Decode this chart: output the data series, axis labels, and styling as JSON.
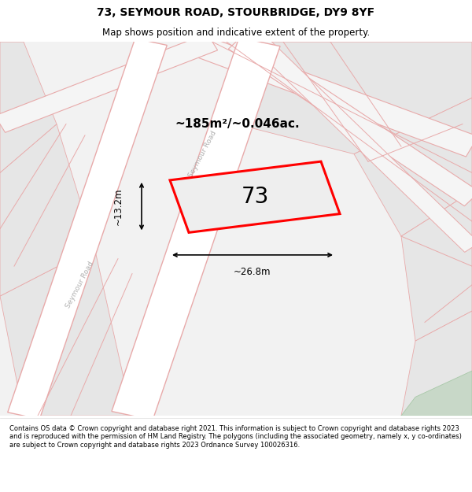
{
  "title": "73, SEYMOUR ROAD, STOURBRIDGE, DY9 8YF",
  "subtitle": "Map shows position and indicative extent of the property.",
  "footer": "Contains OS data © Crown copyright and database right 2021. This information is subject to Crown copyright and database rights 2023 and is reproduced with the permission of HM Land Registry. The polygons (including the associated geometry, namely x, y co-ordinates) are subject to Crown copyright and database rights 2023 Ordnance Survey 100026316.",
  "area_label": "~185m²/~0.046ac.",
  "number_label": "73",
  "width_label": "~26.8m",
  "height_label": "~13.2m",
  "bg_color": "#ffffff",
  "map_bg": "#f2f2f2",
  "parcel_color": "#e6e6e6",
  "road_color": "#ffffff",
  "road_border": "#e8aaaa",
  "property_fill": "#eeeeee",
  "property_outline": "#ff0000",
  "green_color": "#c8d8c8",
  "road_label_color": "#b0b0b0",
  "title_fontsize": 10,
  "subtitle_fontsize": 8.5,
  "footer_fontsize": 6.0
}
